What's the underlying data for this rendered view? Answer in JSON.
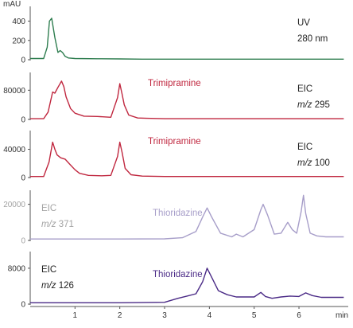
{
  "chart_data": [
    {
      "type": "line",
      "color": "#2e7d4f",
      "y_unit": "mAU",
      "yticks": [
        0,
        200,
        400
      ],
      "ylim": [
        0,
        520
      ],
      "xlim": [
        0,
        7.1
      ],
      "trace_label": [
        "UV",
        "280 nm"
      ],
      "compound": "",
      "x": [
        0,
        0.3,
        0.38,
        0.43,
        0.48,
        0.55,
        0.62,
        0.67,
        0.72,
        0.78,
        0.85,
        1.0,
        1.5,
        2.0,
        2.5,
        3.0,
        3.5,
        4.0,
        5.0,
        6.0,
        7.0
      ],
      "values": [
        12,
        12,
        130,
        400,
        430,
        230,
        75,
        95,
        75,
        35,
        18,
        12,
        10,
        8,
        6,
        6,
        6,
        6,
        6,
        6,
        6
      ]
    },
    {
      "type": "line",
      "color": "#c0273f",
      "y_unit": "",
      "yticks": [
        0,
        80000
      ],
      "ylim": [
        0,
        120000
      ],
      "xlim": [
        0,
        7.1
      ],
      "trace_label": [
        "EIC",
        "m/z 295"
      ],
      "compound": "Trimipramine",
      "x": [
        0,
        0.3,
        0.4,
        0.5,
        0.55,
        0.62,
        0.7,
        0.75,
        0.8,
        0.9,
        1.0,
        1.2,
        1.5,
        1.8,
        1.95,
        2.0,
        2.05,
        2.1,
        2.2,
        2.4,
        2.6,
        3.0,
        4.0,
        5.0,
        6.0,
        7.0
      ],
      "values": [
        2000,
        2000,
        20000,
        75000,
        72000,
        88000,
        105000,
        90000,
        62000,
        30000,
        17000,
        9000,
        8000,
        6000,
        60000,
        98000,
        70000,
        40000,
        12000,
        4000,
        3000,
        2000,
        2000,
        2000,
        2000,
        2000
      ]
    },
    {
      "type": "line",
      "color": "#c0273f",
      "y_unit": "",
      "yticks": [
        0,
        40000
      ],
      "ylim": [
        0,
        62000
      ],
      "xlim": [
        0,
        7.1
      ],
      "trace_label": [
        "EIC",
        "m/z 100"
      ],
      "compound": "Trimipramine",
      "x": [
        0,
        0.3,
        0.42,
        0.5,
        0.55,
        0.6,
        0.68,
        0.78,
        0.88,
        1.0,
        1.1,
        1.3,
        1.6,
        1.8,
        1.95,
        2.0,
        2.05,
        2.12,
        2.25,
        2.5,
        3.0,
        4.0,
        5.0,
        6.0,
        7.0
      ],
      "values": [
        1500,
        1500,
        22000,
        50000,
        40000,
        32000,
        28000,
        26000,
        19000,
        11000,
        6000,
        3000,
        2500,
        3000,
        30000,
        50000,
        36000,
        13000,
        4000,
        2000,
        1500,
        1500,
        1500,
        1500,
        1500
      ]
    },
    {
      "type": "line",
      "color": "#a79ec9",
      "y_unit": "",
      "yticks": [
        0,
        20000
      ],
      "ylim": [
        0,
        26000
      ],
      "xlim": [
        0,
        7.1
      ],
      "trace_label": [
        "EIC",
        "m/z 371"
      ],
      "compound": "Thioridazine",
      "x": [
        0,
        1.0,
        2.0,
        3.0,
        3.4,
        3.7,
        3.85,
        3.95,
        4.05,
        4.25,
        4.5,
        4.6,
        4.75,
        5.0,
        5.15,
        5.2,
        5.3,
        5.45,
        5.6,
        5.75,
        5.85,
        5.95,
        6.05,
        6.1,
        6.15,
        6.25,
        6.4,
        6.6,
        7.0
      ],
      "values": [
        800,
        800,
        800,
        900,
        1500,
        5000,
        13000,
        18000,
        13000,
        4000,
        2000,
        3500,
        2000,
        6000,
        17000,
        20000,
        14000,
        3500,
        4000,
        10000,
        6000,
        4000,
        16000,
        25000,
        15000,
        4000,
        2500,
        2000,
        2000
      ]
    },
    {
      "type": "line",
      "color": "#4a2a86",
      "y_unit": "",
      "yticks": [
        0,
        8000
      ],
      "ylim": [
        0,
        11000
      ],
      "xlim": [
        0,
        7.1
      ],
      "trace_label": [
        "EIC",
        "m/z 126"
      ],
      "compound": "Thioridazine",
      "x": [
        0,
        1.0,
        2.0,
        3.0,
        3.3,
        3.5,
        3.7,
        3.85,
        3.95,
        4.05,
        4.2,
        4.4,
        4.6,
        5.0,
        5.15,
        5.25,
        5.4,
        5.6,
        5.8,
        6.0,
        6.15,
        6.3,
        6.5,
        6.8,
        7.0
      ],
      "values": [
        300,
        300,
        300,
        400,
        1300,
        1800,
        2300,
        5000,
        8000,
        6000,
        3000,
        2100,
        1600,
        1600,
        2600,
        1700,
        1300,
        1600,
        1800,
        1700,
        2500,
        1900,
        1500,
        1500,
        1500
      ]
    }
  ],
  "x_axis": {
    "ticks": [
      1,
      2,
      3,
      4,
      5,
      6
    ],
    "unit": "min"
  },
  "colors": {
    "axis": "#555555",
    "label_text": "#222222",
    "tick_text": "#333333",
    "faded_text": "#a3a3a3"
  }
}
